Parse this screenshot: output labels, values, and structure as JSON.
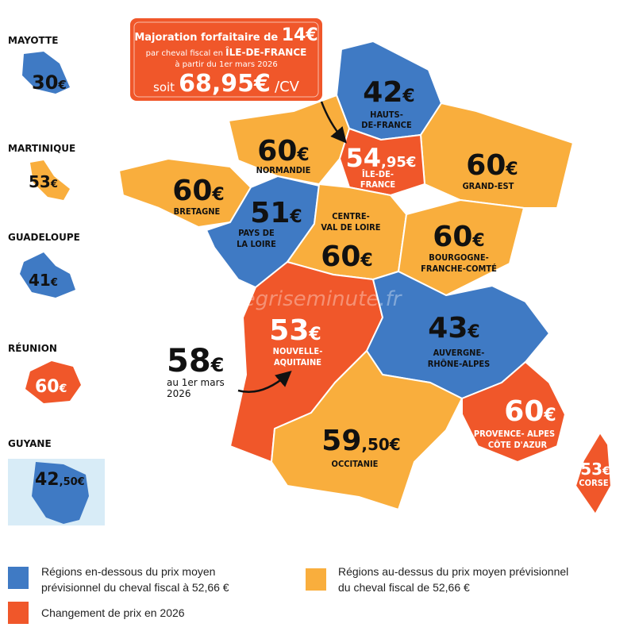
{
  "colors": {
    "below": "#3f7ac4",
    "above": "#f9ae3d",
    "change": "#f0572a",
    "guyane_bg": "#d8ecf7"
  },
  "callout": {
    "line1": "Majoration forfaitaire de",
    "line1_value": "14€",
    "line2": "par cheval fiscal en",
    "line2_region": "ÎLE-DE-FRANCE",
    "line3": "à partir du 1er mars 2026",
    "line4_prefix": "soit",
    "line4_value": "68,95€",
    "line4_unit": "/CV"
  },
  "regions": {
    "hauts_de_france": {
      "price": "42",
      "currency": "€",
      "name1": "HAUTS-",
      "name2": "DE-FRANCE"
    },
    "ile_de_france": {
      "price": "54",
      "decimals": ",95€",
      "name1": "ÎLE-DE-",
      "name2": "FRANCE"
    },
    "grand_est": {
      "price": "60",
      "currency": "€",
      "name1": "GRAND-EST"
    },
    "normandie": {
      "price": "60",
      "currency": "€",
      "name1": "NORMANDIE"
    },
    "bretagne": {
      "price": "60",
      "currency": "€",
      "name1": "BRETAGNE"
    },
    "pays_de_la_loire": {
      "price": "51",
      "currency": "€",
      "name1": "PAYS DE",
      "name2": "LA LOIRE"
    },
    "centre_val_de_loire": {
      "price": "60",
      "currency": "€",
      "name1": "CENTRE-",
      "name2": "VAL DE LOIRE"
    },
    "bourgogne_franche_comte": {
      "price": "60",
      "currency": "€",
      "name1": "BOURGOGNE-",
      "name2": "FRANCHE-COMTÉ"
    },
    "nouvelle_aquitaine": {
      "price": "53",
      "currency": "€",
      "name1": "NOUVELLE-",
      "name2": "AQUITAINE"
    },
    "auvergne_rhone_alpes": {
      "price": "43",
      "currency": "€",
      "name1": "AUVERGNE-",
      "name2": "RHÔNE-ALPES"
    },
    "occitanie": {
      "price": "59",
      "decimals": ",50€",
      "name1": "OCCITANIE"
    },
    "paca": {
      "price": "60",
      "currency": "€",
      "name1": "PROVENCE- ALPES",
      "name2": "CÔTE D'AZUR"
    },
    "corse": {
      "price": "53",
      "currency": "€",
      "name1": "CORSE"
    }
  },
  "nouvelle_aquitaine_change": {
    "price": "58",
    "currency": "€",
    "line1": "au 1er mars",
    "line2": "2026"
  },
  "overseas": [
    {
      "name": "MAYOTTE",
      "price": "30",
      "currency": "€"
    },
    {
      "name": "MARTINIQUE",
      "price": "53",
      "currency": "€"
    },
    {
      "name": "GUADELOUPE",
      "price": "41",
      "currency": "€"
    },
    {
      "name": "RÉUNION",
      "price": "60",
      "currency": "€"
    },
    {
      "name": "GUYANE",
      "price": "42",
      "decimals": ",50€"
    }
  ],
  "watermark": "cartegriseminute.fr",
  "legend": {
    "below": {
      "line1": "Régions en-dessous du prix moyen",
      "line2": "prévisionnel du cheval fiscal à 52,66 €"
    },
    "above": {
      "line1": "Régions au-dessus du prix moyen prévisionnel",
      "line2": "du cheval fiscal de 52,66 €"
    },
    "change": {
      "line1": "Changement de prix en 2026"
    }
  }
}
